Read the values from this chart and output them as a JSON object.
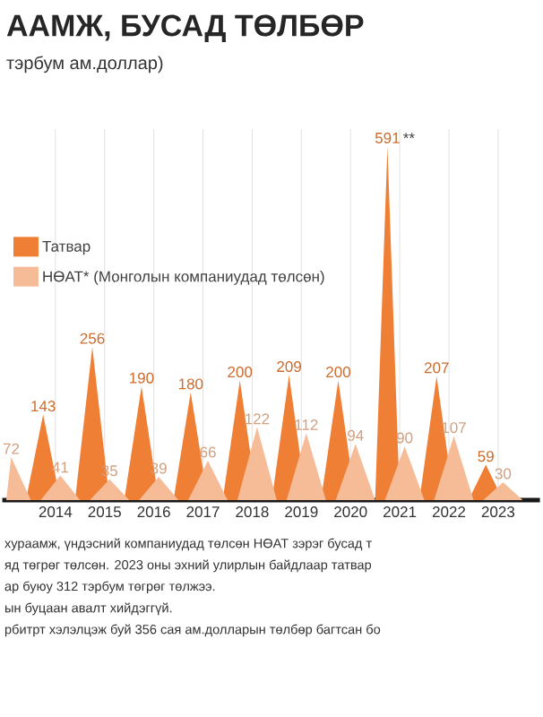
{
  "chart_data": {
    "type": "area",
    "title": "ААМЖ, БУСАД ТӨЛБӨР",
    "subtitle": "тэрбум ам.доллар)",
    "series": [
      {
        "name": "Татвар",
        "color": "#f07f36",
        "x": [
          2013.4,
          2013.75,
          2014.1,
          2014.4,
          2014.75,
          2015.1,
          2015.4,
          2015.75,
          2016.1,
          2016.4,
          2016.75,
          2017.1,
          2017.4,
          2017.75,
          2018.1,
          2018.4,
          2018.75,
          2019.1,
          2019.4,
          2019.75,
          2020.1,
          2020.5,
          2020.75,
          2021.0,
          2021.4,
          2021.75,
          2022.1,
          2022.4,
          2022.75,
          2023.1
        ],
        "values": [
          0,
          143,
          0,
          0,
          256,
          0,
          0,
          190,
          0,
          0,
          180,
          0,
          0,
          200,
          0,
          0,
          209,
          0,
          0,
          200,
          0,
          0,
          591,
          0,
          0,
          207,
          0,
          0,
          59,
          0
        ],
        "value_labels": [
          null,
          "143",
          null,
          null,
          "256",
          null,
          null,
          "190",
          null,
          null,
          "180",
          null,
          null,
          "200",
          null,
          null,
          "209",
          null,
          null,
          "200",
          null,
          null,
          "591",
          null,
          null,
          "207",
          null,
          null,
          "59",
          null
        ]
      },
      {
        "name": "НӨАТ* (Монголын компаниудад төлсөн)",
        "color": "#f6bc98",
        "x": [
          2013.0,
          2013.1,
          2013.5,
          2013.7,
          2014.1,
          2014.5,
          2014.7,
          2015.1,
          2015.5,
          2015.7,
          2016.1,
          2016.5,
          2016.7,
          2017.1,
          2017.5,
          2017.7,
          2018.1,
          2018.5,
          2018.7,
          2019.1,
          2019.5,
          2019.7,
          2020.1,
          2020.5,
          2020.7,
          2021.1,
          2021.5,
          2021.7,
          2022.1,
          2022.5,
          2022.7,
          2023.1,
          2023.5
        ],
        "values": [
          0,
          72,
          0,
          0,
          41,
          0,
          0,
          35,
          0,
          0,
          39,
          0,
          0,
          66,
          0,
          0,
          122,
          0,
          0,
          112,
          0,
          0,
          94,
          0,
          0,
          90,
          0,
          0,
          107,
          0,
          0,
          30,
          0
        ],
        "value_labels": [
          null,
          "72",
          null,
          null,
          "41",
          null,
          null,
          "35",
          null,
          null,
          "39",
          null,
          null,
          "66",
          null,
          null,
          "122",
          null,
          null,
          "112",
          null,
          null,
          "94",
          null,
          null,
          "90",
          null,
          null,
          "107",
          null,
          null,
          "30",
          null
        ]
      }
    ],
    "xlim": [
      2012.92,
      2023.85
    ],
    "ylim": [
      0,
      620
    ],
    "xticks": [
      2014,
      2015,
      2016,
      2017,
      2018,
      2019,
      2020,
      2021,
      2022,
      2023
    ],
    "grid": true,
    "legend": "top left",
    "tick_labels": "x",
    "annotations": [
      {
        "text": "**",
        "x": 2020.75,
        "y": 591
      },
      "хураамж, үндэсний компаниудад төлсөн НӨАТ зэрэг бусад т",
      "яд төгрөг төлсөн. 2023 оны эхний улирлын байдлаар татвар",
      "ар буюу 312 тэрбум төгрөг төлжээ.",
      "ын буцаан авалт хийдэггүй.",
      "рбитрт хэлэлцэж буй 356 сая ам.долларын төлбөр багтсан бо"
    ]
  }
}
